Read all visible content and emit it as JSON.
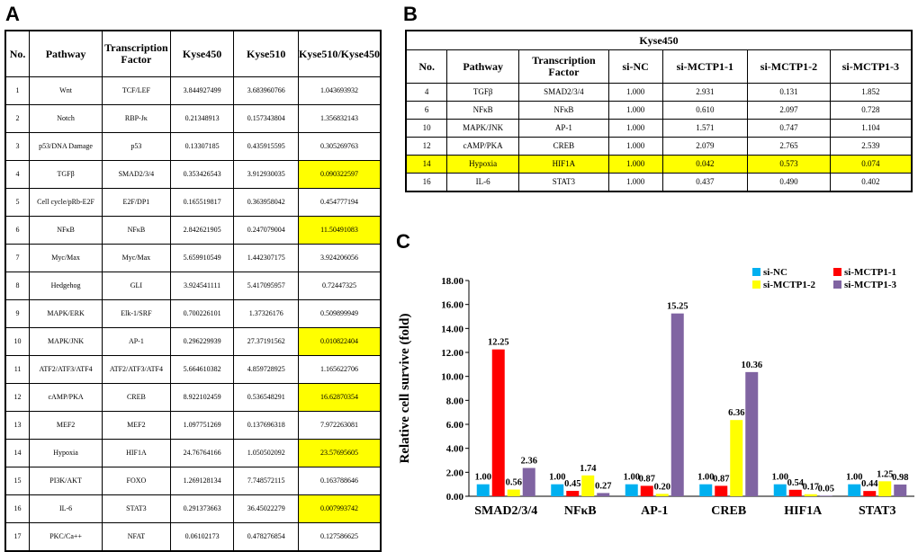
{
  "panels": {
    "a": "A",
    "b": "B",
    "c": "C"
  },
  "tableA": {
    "headers": [
      "No.",
      "Pathway",
      "Transcription Factor",
      "Kyse450",
      "Kyse510",
      "Kyse510/Kyse450"
    ],
    "rows": [
      {
        "no": "1",
        "pathway": "Wnt",
        "tf": "TCF/LEF",
        "kyse450": "3.844927499",
        "kyse510": "3.683960766",
        "ratio": "1.043693932",
        "highlight": false
      },
      {
        "no": "2",
        "pathway": "Notch",
        "tf": "RBP-Jκ",
        "kyse450": "0.21348913",
        "kyse510": "0.157343804",
        "ratio": "1.356832143",
        "highlight": false
      },
      {
        "no": "3",
        "pathway": "p53/DNA Damage",
        "tf": "p53",
        "kyse450": "0.13307185",
        "kyse510": "0.435915595",
        "ratio": "0.305269763",
        "highlight": false
      },
      {
        "no": "4",
        "pathway": "TGFβ",
        "tf": "SMAD2/3/4",
        "kyse450": "0.353426543",
        "kyse510": "3.912930035",
        "ratio": "0.090322597",
        "highlight": true
      },
      {
        "no": "5",
        "pathway": "Cell cycle/pRb-E2F",
        "tf": "E2F/DP1",
        "kyse450": "0.165519817",
        "kyse510": "0.363958042",
        "ratio": "0.454777194",
        "highlight": false
      },
      {
        "no": "6",
        "pathway": "NFκB",
        "tf": "NFκB",
        "kyse450": "2.842621905",
        "kyse510": "0.247079004",
        "ratio": "11.50491083",
        "highlight": true
      },
      {
        "no": "7",
        "pathway": "Myc/Max",
        "tf": "Myc/Max",
        "kyse450": "5.659910549",
        "kyse510": "1.442307175",
        "ratio": "3.924206056",
        "highlight": false
      },
      {
        "no": "8",
        "pathway": "Hedgehog",
        "tf": "GLI",
        "kyse450": "3.924541111",
        "kyse510": "5.417095957",
        "ratio": "0.72447325",
        "highlight": false
      },
      {
        "no": "9",
        "pathway": "MAPK/ERK",
        "tf": "Elk-1/SRF",
        "kyse450": "0.700226101",
        "kyse510": "1.37326176",
        "ratio": "0.509899949",
        "highlight": false
      },
      {
        "no": "10",
        "pathway": "MAPK/JNK",
        "tf": "AP-1",
        "kyse450": "0.296229939",
        "kyse510": "27.37191562",
        "ratio": "0.010822404",
        "highlight": true
      },
      {
        "no": "11",
        "pathway": "ATF2/ATF3/ATF4",
        "tf": "ATF2/ATF3/ATF4",
        "kyse450": "5.664610382",
        "kyse510": "4.859728925",
        "ratio": "1.165622706",
        "highlight": false
      },
      {
        "no": "12",
        "pathway": "cAMP/PKA",
        "tf": "CREB",
        "kyse450": "8.922102459",
        "kyse510": "0.536548291",
        "ratio": "16.62870354",
        "highlight": true
      },
      {
        "no": "13",
        "pathway": "MEF2",
        "tf": "MEF2",
        "kyse450": "1.097751269",
        "kyse510": "0.137696318",
        "ratio": "7.972263081",
        "highlight": false
      },
      {
        "no": "14",
        "pathway": "Hypoxia",
        "tf": "HIF1A",
        "kyse450": "24.76764166",
        "kyse510": "1.050502092",
        "ratio": "23.57695605",
        "highlight": true
      },
      {
        "no": "15",
        "pathway": "PI3K/AKT",
        "tf": "FOXO",
        "kyse450": "1.269128134",
        "kyse510": "7.748572115",
        "ratio": "0.163788646",
        "highlight": false
      },
      {
        "no": "16",
        "pathway": "IL-6",
        "tf": "STAT3",
        "kyse450": "0.291373663",
        "kyse510": "36.45022279",
        "ratio": "0.007993742",
        "highlight": true
      },
      {
        "no": "17",
        "pathway": "PKC/Ca++",
        "tf": "NFAT",
        "kyse450": "0.06102173",
        "kyse510": "0.478276854",
        "ratio": "0.127586625",
        "highlight": false
      }
    ]
  },
  "tableB": {
    "title": "Kyse450",
    "headers": [
      "No.",
      "Pathway",
      "Transcription Factor",
      "si-NC",
      "si-MCTP1-1",
      "si-MCTP1-2",
      "si-MCTP1-3"
    ],
    "rows": [
      {
        "no": "4",
        "pathway": "TGFβ",
        "tf": "SMAD2/3/4",
        "v": [
          "1.000",
          "2.931",
          "0.131",
          "1.852"
        ],
        "highlight": false
      },
      {
        "no": "6",
        "pathway": "NFκB",
        "tf": "NFκB",
        "v": [
          "1.000",
          "0.610",
          "2.097",
          "0.728"
        ],
        "highlight": false
      },
      {
        "no": "10",
        "pathway": "MAPK/JNK",
        "tf": "AP-1",
        "v": [
          "1.000",
          "1.571",
          "0.747",
          "1.104"
        ],
        "highlight": false
      },
      {
        "no": "12",
        "pathway": "cAMP/PKA",
        "tf": "CREB",
        "v": [
          "1.000",
          "2.079",
          "2.765",
          "2.539"
        ],
        "highlight": false
      },
      {
        "no": "14",
        "pathway": "Hypoxia",
        "tf": "HIF1A",
        "v": [
          "1.000",
          "0.042",
          "0.573",
          "0.074"
        ],
        "highlight": true
      },
      {
        "no": "16",
        "pathway": "IL-6",
        "tf": "STAT3",
        "v": [
          "1.000",
          "0.437",
          "0.490",
          "0.402"
        ],
        "highlight": false
      }
    ]
  },
  "chart_data": {
    "type": "bar",
    "title": "",
    "xlabel": "",
    "ylabel": "Relative cell survive (fold)",
    "ylim": [
      0,
      18
    ],
    "yticks": [
      "0.00",
      "2.00",
      "4.00",
      "6.00",
      "8.00",
      "10.00",
      "12.00",
      "14.00",
      "16.00",
      "18.00"
    ],
    "grid": false,
    "legend_position": "top-right",
    "categories": [
      "SMAD2/3/4",
      "NFκB",
      "AP-1",
      "CREB",
      "HIF1A",
      "STAT3"
    ],
    "series": [
      {
        "name": "si-NC",
        "color": "#00b0f0",
        "values": [
          1.0,
          1.0,
          1.0,
          1.0,
          1.0,
          1.0
        ],
        "labels": [
          "1.00",
          "1.00",
          "1.00",
          "1.00",
          "1.00",
          "1.00"
        ]
      },
      {
        "name": "si-MCTP1-1",
        "color": "#ff0000",
        "values": [
          12.25,
          0.45,
          0.87,
          0.87,
          0.54,
          0.44
        ],
        "labels": [
          "12.25",
          "0.45",
          "0.87",
          "0.87",
          "0.54",
          "0.44"
        ]
      },
      {
        "name": "si-MCTP1-2",
        "color": "#ffff00",
        "values": [
          0.56,
          1.74,
          0.2,
          6.36,
          0.17,
          1.25
        ],
        "labels": [
          "0.56",
          "1.74",
          "0.20",
          "6.36",
          "0.17",
          "1.25"
        ]
      },
      {
        "name": "si-MCTP1-3",
        "color": "#8064a2",
        "values": [
          2.36,
          0.27,
          15.25,
          10.36,
          0.05,
          0.98
        ],
        "labels": [
          "2.36",
          "0.27",
          "15.25",
          "10.36",
          "0.05",
          "0.98"
        ]
      }
    ]
  }
}
